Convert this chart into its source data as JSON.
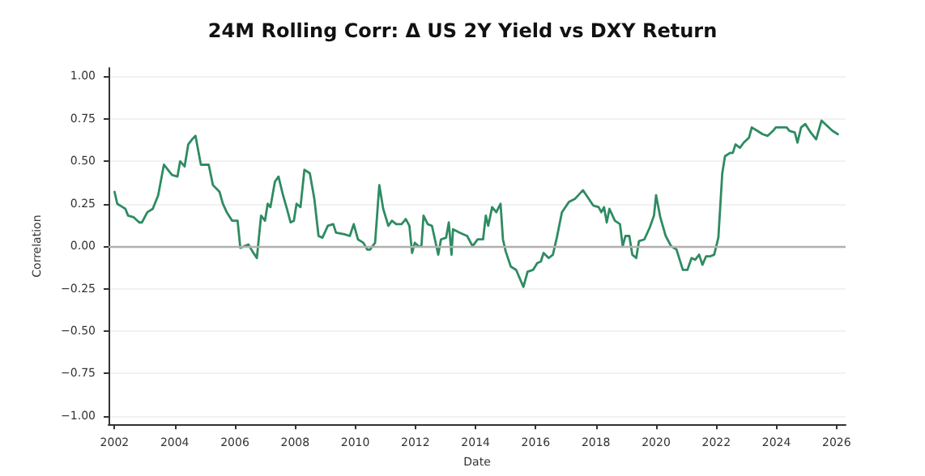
{
  "chart_data": {
    "type": "line",
    "title": "24M Rolling Corr: Δ US 2Y Yield vs DXY Return",
    "xlabel": "Date",
    "ylabel": "Correlation",
    "xlim": [
      2001.8,
      2026.3
    ],
    "xticks": [
      2002,
      2004,
      2006,
      2008,
      2010,
      2012,
      2014,
      2016,
      2018,
      2020,
      2022,
      2024,
      2026
    ],
    "ylim": [
      -1.05,
      1.05
    ],
    "yticks": [
      {
        "value": -1,
        "label": "−1.00"
      },
      {
        "value": -0.75,
        "label": "−0.75"
      },
      {
        "value": -0.5,
        "label": "−0.50"
      },
      {
        "value": -0.25,
        "label": "−0.25"
      },
      {
        "value": 0,
        "label": "0.00"
      },
      {
        "value": 0.25,
        "label": "0.25"
      },
      {
        "value": 0.5,
        "label": "0.50"
      },
      {
        "value": 0.75,
        "label": "0.75"
      },
      {
        "value": 1,
        "label": "1.00"
      }
    ],
    "grid": "y",
    "marker": "none",
    "line_style": "solid",
    "ref_lines": [
      {
        "axis": "y",
        "value": 0,
        "color": "#b0b0b0"
      }
    ],
    "series": [
      {
        "color": "#2e8b62",
        "x": [
          2002.0,
          2002.09,
          2002.27,
          2002.36,
          2002.45,
          2002.64,
          2002.82,
          2002.91,
          2003.09,
          2003.27,
          2003.45,
          2003.64,
          2003.91,
          2004.09,
          2004.18,
          2004.33,
          2004.45,
          2004.58,
          2004.69,
          2004.87,
          2005.13,
          2005.27,
          2005.49,
          2005.6,
          2005.73,
          2005.91,
          2006.09,
          2006.18,
          2006.45,
          2006.58,
          2006.73,
          2006.87,
          2007.0,
          2007.09,
          2007.18,
          2007.33,
          2007.45,
          2007.6,
          2007.73,
          2007.85,
          2007.96,
          2008.05,
          2008.18,
          2008.31,
          2008.49,
          2008.64,
          2008.78,
          2008.91,
          2009.09,
          2009.27,
          2009.36,
          2009.64,
          2009.82,
          2009.95,
          2010.09,
          2010.27,
          2010.4,
          2010.49,
          2010.66,
          2010.8,
          2010.93,
          2011.1,
          2011.22,
          2011.36,
          2011.54,
          2011.68,
          2011.8,
          2011.89,
          2011.98,
          2012.1,
          2012.2,
          2012.27,
          2012.41,
          2012.55,
          2012.76,
          2012.85,
          2013.02,
          2013.11,
          2013.2,
          2013.25,
          2013.46,
          2013.72,
          2013.9,
          2014.07,
          2014.25,
          2014.34,
          2014.42,
          2014.55,
          2014.69,
          2014.83,
          2014.91,
          2015.0,
          2015.17,
          2015.35,
          2015.47,
          2015.59,
          2015.73,
          2015.91,
          2016.05,
          2016.17,
          2016.26,
          2016.43,
          2016.57,
          2016.7,
          2016.87,
          2017.1,
          2017.31,
          2017.57,
          2017.91,
          2018.09,
          2018.18,
          2018.27,
          2018.36,
          2018.45,
          2018.63,
          2018.8,
          2018.89,
          2018.98,
          2019.11,
          2019.21,
          2019.34,
          2019.43,
          2019.61,
          2019.79,
          2019.93,
          2020.0,
          2020.14,
          2020.32,
          2020.5,
          2020.68,
          2020.89,
          2021.04,
          2021.18,
          2021.3,
          2021.43,
          2021.54,
          2021.66,
          2021.79,
          2021.93,
          2022.07,
          2022.2,
          2022.29,
          2022.46,
          2022.55,
          2022.64,
          2022.79,
          2022.91,
          2023.09,
          2023.18,
          2023.36,
          2023.54,
          2023.71,
          2023.89,
          2023.98,
          2024.16,
          2024.34,
          2024.43,
          2024.61,
          2024.7,
          2024.82,
          2024.96,
          2025.14,
          2025.23,
          2025.32,
          2025.5,
          2025.68,
          2025.86,
          2026.04
        ],
        "values": [
          0.32,
          0.25,
          0.23,
          0.22,
          0.18,
          0.17,
          0.14,
          0.14,
          0.2,
          0.22,
          0.3,
          0.48,
          0.42,
          0.41,
          0.5,
          0.47,
          0.6,
          0.63,
          0.65,
          0.48,
          0.48,
          0.36,
          0.32,
          0.25,
          0.2,
          0.15,
          0.15,
          -0.01,
          0.01,
          -0.03,
          -0.07,
          0.18,
          0.15,
          0.25,
          0.23,
          0.38,
          0.41,
          0.3,
          0.22,
          0.14,
          0.15,
          0.25,
          0.23,
          0.45,
          0.43,
          0.28,
          0.06,
          0.05,
          0.12,
          0.13,
          0.08,
          0.07,
          0.06,
          0.13,
          0.04,
          0.02,
          -0.02,
          -0.02,
          0.02,
          0.36,
          0.22,
          0.12,
          0.15,
          0.13,
          0.13,
          0.16,
          0.12,
          -0.04,
          0.02,
          0.0,
          0.0,
          0.18,
          0.13,
          0.12,
          -0.05,
          0.04,
          0.05,
          0.14,
          -0.05,
          0.1,
          0.08,
          0.06,
          0.0,
          0.04,
          0.04,
          0.18,
          0.12,
          0.23,
          0.2,
          0.25,
          0.04,
          -0.03,
          -0.12,
          -0.14,
          -0.19,
          -0.24,
          -0.15,
          -0.14,
          -0.1,
          -0.09,
          -0.04,
          -0.07,
          -0.05,
          0.05,
          0.2,
          0.26,
          0.28,
          0.33,
          0.24,
          0.23,
          0.2,
          0.23,
          0.14,
          0.22,
          0.15,
          0.13,
          0.0,
          0.06,
          0.06,
          -0.05,
          -0.07,
          0.03,
          0.04,
          0.11,
          0.18,
          0.3,
          0.17,
          0.06,
          0.0,
          -0.02,
          -0.14,
          -0.14,
          -0.07,
          -0.08,
          -0.05,
          -0.11,
          -0.06,
          -0.06,
          -0.05,
          0.05,
          0.43,
          0.53,
          0.55,
          0.55,
          0.6,
          0.58,
          0.61,
          0.64,
          0.7,
          0.68,
          0.66,
          0.65,
          0.68,
          0.7,
          0.7,
          0.7,
          0.68,
          0.67,
          0.61,
          0.7,
          0.72,
          0.67,
          0.65,
          0.63,
          0.74,
          0.71,
          0.68,
          0.66
        ]
      }
    ]
  }
}
